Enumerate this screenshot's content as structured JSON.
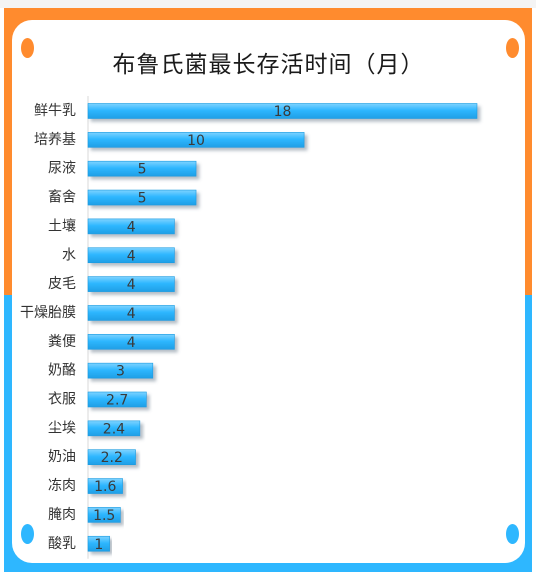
{
  "chart_data": {
    "type": "bar",
    "orientation": "horizontal",
    "title": "布鲁氏菌最长存活时间（月）",
    "xlabel": "",
    "ylabel": "",
    "categories": [
      "鲜牛乳",
      "培养基",
      "尿液",
      "畜舍",
      "土壤",
      "水",
      "皮毛",
      "干燥胎膜",
      "粪便",
      "奶酪",
      "衣服",
      "尘埃",
      "奶油",
      "冻肉",
      "腌肉",
      "酸乳"
    ],
    "values": [
      18,
      10,
      5,
      5,
      4,
      4,
      4,
      4,
      4,
      3,
      2.7,
      2.4,
      2.2,
      1.6,
      1.5,
      1
    ],
    "xlim": [
      0,
      18
    ],
    "grid": false,
    "legend": "none",
    "data_labels": true
  },
  "colors": {
    "bar": "#2eb7ff",
    "bar_highlight": "#7fd3ff",
    "frame_top": "#ff8b2e",
    "frame_bottom": "#2eb7ff",
    "background": "#ffffff"
  }
}
